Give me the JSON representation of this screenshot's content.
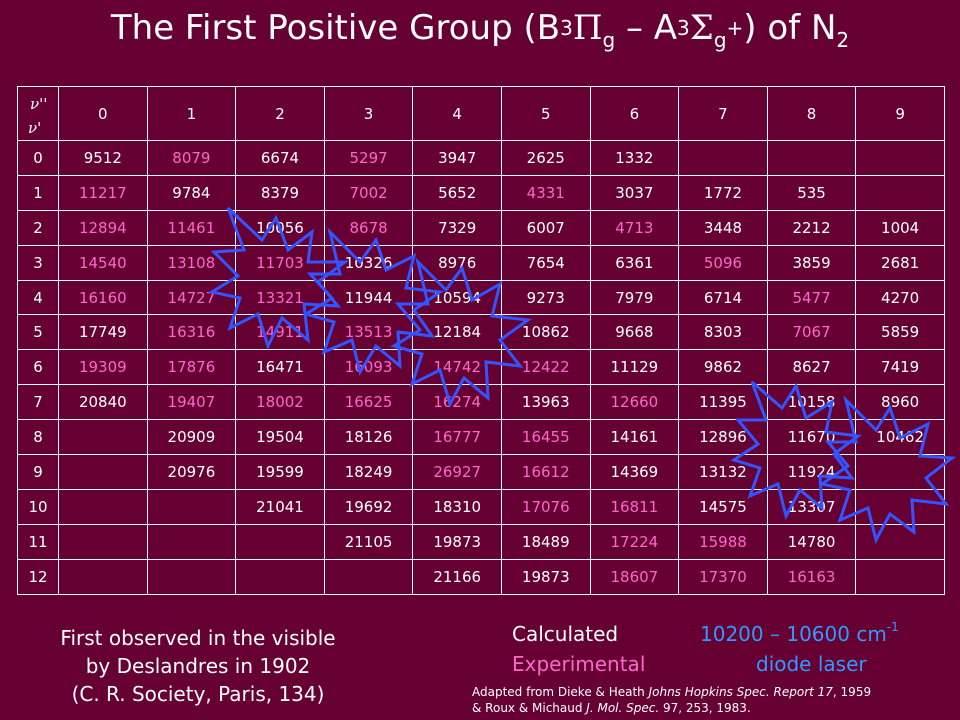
{
  "title": {
    "main": "The First Positive Group (B",
    "b_sup": "3",
    "b_sym": "Π",
    "b_sub": "g",
    "dash": " – A",
    "a_sup": "3",
    "a_sym": "Σ",
    "a_sub": "g",
    "a_sup2": "+",
    "tail": ") of N",
    "n_sub": "2"
  },
  "table": {
    "corner_top": "ν''",
    "corner_bottom": "ν'",
    "columns": [
      "0",
      "1",
      "2",
      "3",
      "4",
      "5",
      "6",
      "7",
      "8",
      "9"
    ],
    "rows": [
      {
        "v": "0",
        "cells": [
          {
            "t": "9512",
            "e": false
          },
          {
            "t": "8079",
            "e": true
          },
          {
            "t": "6674",
            "e": false
          },
          {
            "t": "5297",
            "e": true
          },
          {
            "t": "3947",
            "e": false
          },
          {
            "t": "2625",
            "e": false
          },
          {
            "t": "1332",
            "e": false
          },
          {
            "t": "",
            "e": false
          },
          {
            "t": "",
            "e": false
          },
          {
            "t": "",
            "e": false
          }
        ]
      },
      {
        "v": "1",
        "cells": [
          {
            "t": "11217",
            "e": true
          },
          {
            "t": "9784",
            "e": false
          },
          {
            "t": "8379",
            "e": false
          },
          {
            "t": "7002",
            "e": true
          },
          {
            "t": "5652",
            "e": false
          },
          {
            "t": "4331",
            "e": true
          },
          {
            "t": "3037",
            "e": false
          },
          {
            "t": "1772",
            "e": false
          },
          {
            "t": "535",
            "e": false
          },
          {
            "t": "",
            "e": false
          }
        ]
      },
      {
        "v": "2",
        "cells": [
          {
            "t": "12894",
            "e": true
          },
          {
            "t": "11461",
            "e": true
          },
          {
            "t": "10056",
            "e": false
          },
          {
            "t": "8678",
            "e": true
          },
          {
            "t": "7329",
            "e": false
          },
          {
            "t": "6007",
            "e": false
          },
          {
            "t": "4713",
            "e": true
          },
          {
            "t": "3448",
            "e": false
          },
          {
            "t": "2212",
            "e": false
          },
          {
            "t": "1004",
            "e": false
          }
        ]
      },
      {
        "v": "3",
        "cells": [
          {
            "t": "14540",
            "e": true
          },
          {
            "t": "13108",
            "e": true
          },
          {
            "t": "11703",
            "e": true
          },
          {
            "t": "10326",
            "e": false
          },
          {
            "t": "8976",
            "e": false
          },
          {
            "t": "7654",
            "e": false
          },
          {
            "t": "6361",
            "e": false
          },
          {
            "t": "5096",
            "e": true
          },
          {
            "t": "3859",
            "e": false
          },
          {
            "t": "2681",
            "e": false
          }
        ]
      },
      {
        "v": "4",
        "cells": [
          {
            "t": "16160",
            "e": true
          },
          {
            "t": "14727",
            "e": true
          },
          {
            "t": "13321",
            "e": true
          },
          {
            "t": "11944",
            "e": false
          },
          {
            "t": "10594",
            "e": false
          },
          {
            "t": "9273",
            "e": false
          },
          {
            "t": "7979",
            "e": false
          },
          {
            "t": "6714",
            "e": false
          },
          {
            "t": "5477",
            "e": true
          },
          {
            "t": "4270",
            "e": false
          }
        ]
      },
      {
        "v": "5",
        "cells": [
          {
            "t": "17749",
            "e": false
          },
          {
            "t": "16316",
            "e": true
          },
          {
            "t": "14911",
            "e": true
          },
          {
            "t": "13513",
            "e": true
          },
          {
            "t": "12184",
            "e": false
          },
          {
            "t": "10862",
            "e": false
          },
          {
            "t": "9668",
            "e": false
          },
          {
            "t": "8303",
            "e": false
          },
          {
            "t": "7067",
            "e": true
          },
          {
            "t": "5859",
            "e": false
          }
        ]
      },
      {
        "v": "6",
        "cells": [
          {
            "t": "19309",
            "e": true
          },
          {
            "t": "17876",
            "e": true
          },
          {
            "t": "16471",
            "e": false
          },
          {
            "t": "16093",
            "e": true
          },
          {
            "t": "14742",
            "e": true
          },
          {
            "t": "12422",
            "e": true
          },
          {
            "t": "11129",
            "e": false
          },
          {
            "t": "9862",
            "e": false
          },
          {
            "t": "8627",
            "e": false
          },
          {
            "t": "7419",
            "e": false
          }
        ]
      },
      {
        "v": "7",
        "cells": [
          {
            "t": "20840",
            "e": false
          },
          {
            "t": "19407",
            "e": true
          },
          {
            "t": "18002",
            "e": true
          },
          {
            "t": "16625",
            "e": true
          },
          {
            "t": "16274",
            "e": true
          },
          {
            "t": "13963",
            "e": false
          },
          {
            "t": "12660",
            "e": true
          },
          {
            "t": "11395",
            "e": false
          },
          {
            "t": "10158",
            "e": false
          },
          {
            "t": "8960",
            "e": false
          }
        ]
      },
      {
        "v": "8",
        "cells": [
          {
            "t": "",
            "e": false
          },
          {
            "t": "20909",
            "e": false
          },
          {
            "t": "19504",
            "e": false
          },
          {
            "t": "18126",
            "e": false
          },
          {
            "t": "16777",
            "e": true
          },
          {
            "t": "16455",
            "e": true
          },
          {
            "t": "14161",
            "e": false
          },
          {
            "t": "12896",
            "e": false
          },
          {
            "t": "11670",
            "e": false
          },
          {
            "t": "10462",
            "e": false
          }
        ]
      },
      {
        "v": "9",
        "cells": [
          {
            "t": "",
            "e": false
          },
          {
            "t": "20976",
            "e": false
          },
          {
            "t": "19599",
            "e": false
          },
          {
            "t": "18249",
            "e": false
          },
          {
            "t": "26927",
            "e": true
          },
          {
            "t": "16612",
            "e": true
          },
          {
            "t": "14369",
            "e": false
          },
          {
            "t": "13132",
            "e": false
          },
          {
            "t": "11924",
            "e": false
          },
          {
            "t": "",
            "e": false
          }
        ]
      },
      {
        "v": "10",
        "cells": [
          {
            "t": "",
            "e": false
          },
          {
            "t": "",
            "e": false
          },
          {
            "t": "21041",
            "e": false
          },
          {
            "t": "19692",
            "e": false
          },
          {
            "t": "18310",
            "e": false
          },
          {
            "t": "17076",
            "e": true
          },
          {
            "t": "16811",
            "e": true
          },
          {
            "t": "14575",
            "e": false
          },
          {
            "t": "13307",
            "e": false
          },
          {
            "t": "",
            "e": false
          }
        ]
      },
      {
        "v": "11",
        "cells": [
          {
            "t": "",
            "e": false
          },
          {
            "t": "",
            "e": false
          },
          {
            "t": "",
            "e": false
          },
          {
            "t": "21105",
            "e": false
          },
          {
            "t": "19873",
            "e": false
          },
          {
            "t": "18489",
            "e": false
          },
          {
            "t": "17224",
            "e": true
          },
          {
            "t": "15988",
            "e": true
          },
          {
            "t": "14780",
            "e": false
          },
          {
            "t": "",
            "e": false
          }
        ]
      },
      {
        "v": "12",
        "cells": [
          {
            "t": "",
            "e": false
          },
          {
            "t": "",
            "e": false
          },
          {
            "t": "",
            "e": false
          },
          {
            "t": "",
            "e": false
          },
          {
            "t": "21166",
            "e": false
          },
          {
            "t": "19873",
            "e": false
          },
          {
            "t": "18607",
            "e": true
          },
          {
            "t": "17370",
            "e": true
          },
          {
            "t": "16163",
            "e": true
          },
          {
            "t": "",
            "e": false
          }
        ]
      }
    ]
  },
  "notes": {
    "observed_line1": "First observed in the visible",
    "observed_line2": "by Deslandres in 1902",
    "observed_line3": "(C. R. Society, Paris, 134)",
    "legend_calculated": "Calculated",
    "legend_experimental": "Experimental",
    "range_text": "10200 – 10600 cm",
    "range_sup": "-1",
    "diode": "diode laser",
    "credit_a": "Adapted from Dieke & Heath ",
    "credit_b": "Johns Hopkins Spec. Report 17",
    "credit_c": ", 1959",
    "credit_d": "& Roux & Michaud ",
    "credit_e": "J. Mol. Spec.",
    "credit_f": " 97, 253, 1983."
  },
  "colors": {
    "background": "#660033",
    "calculated": "#ffffff",
    "experimental": "#ff66cc",
    "laser": "#3399ff"
  }
}
